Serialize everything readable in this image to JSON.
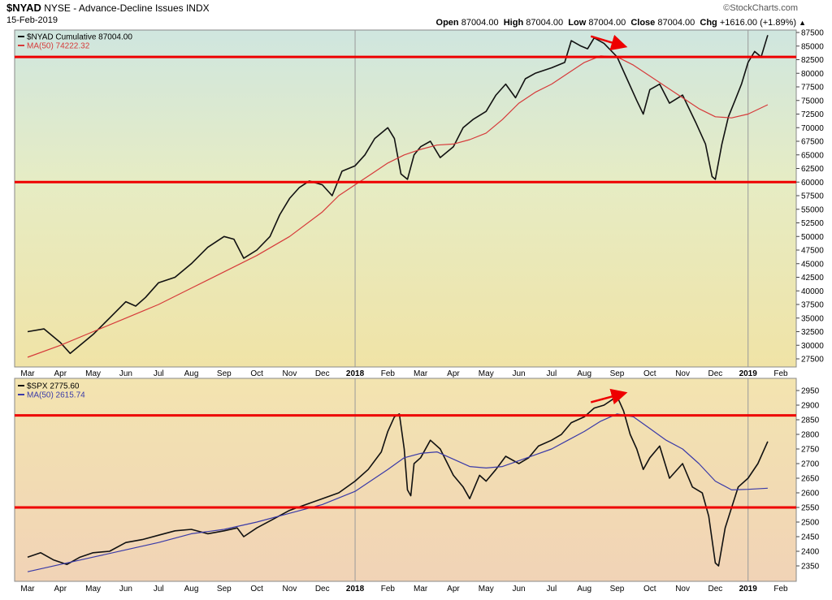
{
  "header": {
    "symbol": "$NYAD",
    "desc": "NYSE - Advance-Decline Issues INDX",
    "date": "15-Feb-2019",
    "brand": "©StockCharts.com",
    "quote": {
      "open_label": "Open",
      "open": "87004.00",
      "high_label": "High",
      "high": "87004.00",
      "low_label": "Low",
      "low": "87004.00",
      "close_label": "Close",
      "close": "87004.00",
      "chg_label": "Chg",
      "chg": "+1616.00 (+1.89%)"
    }
  },
  "colors": {
    "price": "#111111",
    "ma_top": "#d63a3a",
    "ma_bottom": "#3a3aa8",
    "hline": "#ee0000",
    "arrow": "#ee0000"
  },
  "months": [
    "Mar",
    "Apr",
    "May",
    "Jun",
    "Jul",
    "Aug",
    "Sep",
    "Oct",
    "Nov",
    "Dec",
    "2018",
    "Feb",
    "Mar",
    "Apr",
    "May",
    "Jun",
    "Jul",
    "Aug",
    "Sep",
    "Oct",
    "Nov",
    "Dec",
    "2019",
    "Feb"
  ],
  "chart_data": [
    {
      "type": "line",
      "panel": "top",
      "legend": [
        {
          "label": "$NYAD Cumulative 87004.00"
        },
        {
          "label": "MA(50) 74222.32"
        }
      ],
      "ylim": [
        27500,
        87500
      ],
      "yticks": [
        "87500",
        "85000",
        "82500",
        "80000",
        "77500",
        "75000",
        "72500",
        "70000",
        "67500",
        "65000",
        "62500",
        "60000",
        "57500",
        "55000",
        "52500",
        "50000",
        "47500",
        "45000",
        "42500",
        "40000",
        "37500",
        "35000",
        "32500",
        "30000",
        "27500"
      ],
      "horizontal_lines": [
        83000,
        60000
      ],
      "series": [
        {
          "key": "price",
          "points": [
            [
              0,
              32500
            ],
            [
              0.5,
              33000
            ],
            [
              1,
              30500
            ],
            [
              1.3,
              28500
            ],
            [
              1.6,
              30000
            ],
            [
              2,
              32000
            ],
            [
              2.5,
              35000
            ],
            [
              3,
              38000
            ],
            [
              3.3,
              37200
            ],
            [
              3.6,
              38800
            ],
            [
              4,
              41500
            ],
            [
              4.5,
              42500
            ],
            [
              5,
              45000
            ],
            [
              5.5,
              48000
            ],
            [
              6,
              50000
            ],
            [
              6.3,
              49500
            ],
            [
              6.6,
              46000
            ],
            [
              7,
              47500
            ],
            [
              7.4,
              50000
            ],
            [
              7.7,
              54000
            ],
            [
              8,
              57000
            ],
            [
              8.3,
              59000
            ],
            [
              8.6,
              60200
            ],
            [
              9,
              59500
            ],
            [
              9.3,
              57500
            ],
            [
              9.6,
              62000
            ],
            [
              10,
              63000
            ],
            [
              10.3,
              65000
            ],
            [
              10.6,
              68000
            ],
            [
              11,
              70000
            ],
            [
              11.2,
              68000
            ],
            [
              11.4,
              61500
            ],
            [
              11.6,
              60500
            ],
            [
              11.8,
              65000
            ],
            [
              12,
              66500
            ],
            [
              12.3,
              67500
            ],
            [
              12.6,
              64500
            ],
            [
              13,
              66500
            ],
            [
              13.3,
              70000
            ],
            [
              13.6,
              71500
            ],
            [
              14,
              73000
            ],
            [
              14.3,
              76000
            ],
            [
              14.6,
              78000
            ],
            [
              14.9,
              75500
            ],
            [
              15.2,
              79000
            ],
            [
              15.5,
              80000
            ],
            [
              16,
              81000
            ],
            [
              16.4,
              82000
            ],
            [
              16.6,
              86000
            ],
            [
              16.9,
              85000
            ],
            [
              17.1,
              84500
            ],
            [
              17.3,
              86500
            ],
            [
              17.6,
              85500
            ],
            [
              18,
              83000
            ],
            [
              18.3,
              79000
            ],
            [
              18.6,
              75000
            ],
            [
              18.8,
              72500
            ],
            [
              19,
              77000
            ],
            [
              19.3,
              78000
            ],
            [
              19.6,
              74500
            ],
            [
              20,
              76000
            ],
            [
              20.4,
              71000
            ],
            [
              20.7,
              67000
            ],
            [
              20.9,
              61000
            ],
            [
              21,
              60500
            ],
            [
              21.2,
              67000
            ],
            [
              21.4,
              72000
            ],
            [
              21.6,
              75000
            ],
            [
              21.8,
              78000
            ],
            [
              22,
              82000
            ],
            [
              22.2,
              84000
            ],
            [
              22.4,
              83000
            ],
            [
              22.6,
              87000
            ]
          ]
        },
        {
          "key": "ma",
          "points": [
            [
              0,
              27800
            ],
            [
              1,
              30000
            ],
            [
              2,
              32500
            ],
            [
              3,
              35000
            ],
            [
              4,
              37500
            ],
            [
              5,
              40500
            ],
            [
              6,
              43500
            ],
            [
              7,
              46500
            ],
            [
              8,
              50000
            ],
            [
              9,
              54500
            ],
            [
              9.5,
              57500
            ],
            [
              10,
              59500
            ],
            [
              10.5,
              61500
            ],
            [
              11,
              63500
            ],
            [
              11.5,
              65000
            ],
            [
              12,
              66000
            ],
            [
              12.5,
              66800
            ],
            [
              13,
              67000
            ],
            [
              13.5,
              67800
            ],
            [
              14,
              69000
            ],
            [
              14.5,
              71500
            ],
            [
              15,
              74500
            ],
            [
              15.5,
              76500
            ],
            [
              16,
              78000
            ],
            [
              16.5,
              80000
            ],
            [
              17,
              82000
            ],
            [
              17.5,
              83200
            ],
            [
              18,
              83000
            ],
            [
              18.5,
              81500
            ],
            [
              19,
              79500
            ],
            [
              19.5,
              77500
            ],
            [
              20,
              75500
            ],
            [
              20.5,
              73500
            ],
            [
              21,
              72000
            ],
            [
              21.5,
              71800
            ],
            [
              22,
              72500
            ],
            [
              22.6,
              74222
            ]
          ]
        }
      ],
      "annotations": [
        {
          "type": "arrow",
          "from": [
            17.2,
            86800
          ],
          "to": [
            18.2,
            85000
          ]
        }
      ]
    },
    {
      "type": "line",
      "panel": "bottom",
      "legend": [
        {
          "label": "$SPX 2775.60"
        },
        {
          "label": "MA(50) 2615.74"
        }
      ],
      "ylim": [
        2325,
        2975
      ],
      "yticks": [
        "2950",
        "2900",
        "2850",
        "2800",
        "2750",
        "2700",
        "2650",
        "2600",
        "2550",
        "2500",
        "2450",
        "2400",
        "2350"
      ],
      "horizontal_lines": [
        2865,
        2550
      ],
      "series": [
        {
          "key": "price",
          "points": [
            [
              0,
              2380
            ],
            [
              0.4,
              2395
            ],
            [
              0.8,
              2370
            ],
            [
              1.2,
              2355
            ],
            [
              1.6,
              2380
            ],
            [
              2,
              2395
            ],
            [
              2.5,
              2400
            ],
            [
              3,
              2430
            ],
            [
              3.5,
              2440
            ],
            [
              4,
              2455
            ],
            [
              4.5,
              2470
            ],
            [
              5,
              2475
            ],
            [
              5.5,
              2460
            ],
            [
              6,
              2470
            ],
            [
              6.4,
              2480
            ],
            [
              6.6,
              2450
            ],
            [
              7,
              2480
            ],
            [
              7.5,
              2510
            ],
            [
              8,
              2540
            ],
            [
              8.5,
              2560
            ],
            [
              9,
              2580
            ],
            [
              9.5,
              2600
            ],
            [
              10,
              2640
            ],
            [
              10.4,
              2680
            ],
            [
              10.8,
              2740
            ],
            [
              11,
              2810
            ],
            [
              11.2,
              2860
            ],
            [
              11.35,
              2870
            ],
            [
              11.5,
              2750
            ],
            [
              11.6,
              2610
            ],
            [
              11.7,
              2590
            ],
            [
              11.8,
              2700
            ],
            [
              12,
              2720
            ],
            [
              12.3,
              2780
            ],
            [
              12.6,
              2750
            ],
            [
              13,
              2660
            ],
            [
              13.3,
              2620
            ],
            [
              13.5,
              2580
            ],
            [
              13.8,
              2660
            ],
            [
              14,
              2640
            ],
            [
              14.3,
              2680
            ],
            [
              14.6,
              2725
            ],
            [
              15,
              2700
            ],
            [
              15.3,
              2720
            ],
            [
              15.6,
              2760
            ],
            [
              16,
              2780
            ],
            [
              16.3,
              2800
            ],
            [
              16.6,
              2840
            ],
            [
              17,
              2860
            ],
            [
              17.3,
              2890
            ],
            [
              17.6,
              2900
            ],
            [
              18,
              2930
            ],
            [
              18.2,
              2880
            ],
            [
              18.4,
              2800
            ],
            [
              18.6,
              2750
            ],
            [
              18.8,
              2680
            ],
            [
              19,
              2720
            ],
            [
              19.3,
              2760
            ],
            [
              19.6,
              2650
            ],
            [
              20,
              2700
            ],
            [
              20.3,
              2620
            ],
            [
              20.6,
              2600
            ],
            [
              20.8,
              2520
            ],
            [
              21,
              2360
            ],
            [
              21.1,
              2350
            ],
            [
              21.3,
              2480
            ],
            [
              21.5,
              2550
            ],
            [
              21.7,
              2620
            ],
            [
              22,
              2650
            ],
            [
              22.3,
              2700
            ],
            [
              22.6,
              2775.6
            ]
          ]
        },
        {
          "key": "ma",
          "points": [
            [
              0,
              2330
            ],
            [
              1,
              2355
            ],
            [
              2,
              2380
            ],
            [
              3,
              2405
            ],
            [
              4,
              2430
            ],
            [
              5,
              2460
            ],
            [
              6,
              2475
            ],
            [
              7,
              2500
            ],
            [
              8,
              2530
            ],
            [
              9,
              2560
            ],
            [
              10,
              2605
            ],
            [
              11,
              2680
            ],
            [
              11.5,
              2720
            ],
            [
              12,
              2735
            ],
            [
              12.5,
              2740
            ],
            [
              13,
              2715
            ],
            [
              13.5,
              2690
            ],
            [
              14,
              2685
            ],
            [
              14.5,
              2690
            ],
            [
              15,
              2710
            ],
            [
              15.5,
              2730
            ],
            [
              16,
              2750
            ],
            [
              16.5,
              2780
            ],
            [
              17,
              2810
            ],
            [
              17.5,
              2845
            ],
            [
              18,
              2870
            ],
            [
              18.5,
              2860
            ],
            [
              19,
              2820
            ],
            [
              19.5,
              2780
            ],
            [
              20,
              2750
            ],
            [
              20.5,
              2700
            ],
            [
              21,
              2640
            ],
            [
              21.5,
              2610
            ],
            [
              22,
              2612
            ],
            [
              22.6,
              2615.74
            ]
          ]
        }
      ],
      "annotations": [
        {
          "type": "arrow",
          "from": [
            17.2,
            2910
          ],
          "to": [
            18.2,
            2940
          ]
        }
      ]
    }
  ]
}
